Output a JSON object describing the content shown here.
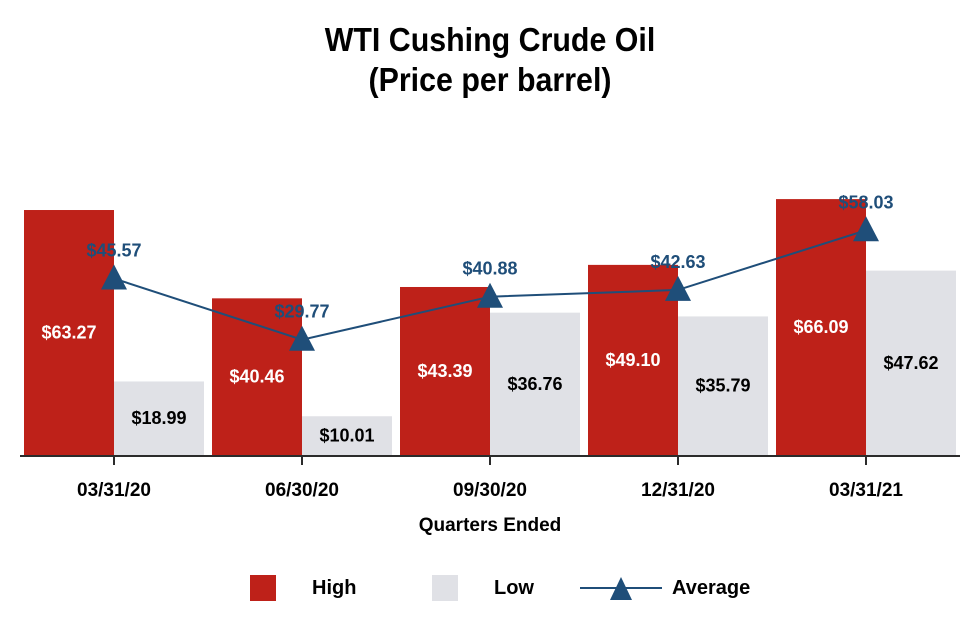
{
  "title_line1": "WTI Cushing Crude Oil",
  "title_line2": "(Price per barrel)",
  "chart_data": {
    "type": "bar",
    "categories": [
      "03/31/20",
      "06/30/20",
      "09/30/20",
      "12/31/20",
      "03/31/21"
    ],
    "series": [
      {
        "name": "High",
        "type": "bar",
        "color": "#be2119",
        "values": [
          63.27,
          40.46,
          43.39,
          49.1,
          66.09
        ],
        "labels": [
          "$63.27",
          "$40.46",
          "$43.39",
          "$49.10",
          "$66.09"
        ]
      },
      {
        "name": "Low",
        "type": "bar",
        "color": "#e0e1e6",
        "values": [
          18.99,
          10.01,
          36.76,
          35.79,
          47.62
        ],
        "labels": [
          "$18.99",
          "$10.01",
          "$36.76",
          "$35.79",
          "$47.62"
        ]
      },
      {
        "name": "Average",
        "type": "line",
        "color": "#1f4e79",
        "values": [
          45.57,
          29.77,
          40.88,
          42.63,
          58.03
        ],
        "labels": [
          "$45.57",
          "$29.77",
          "$40.88",
          "$42.63",
          "$58.03"
        ]
      }
    ],
    "xlabel": "Quarters Ended",
    "ylabel": "",
    "ylim": [
      0,
      68
    ],
    "legend": [
      "High",
      "Low",
      "Average"
    ],
    "legend_position": "bottom"
  }
}
